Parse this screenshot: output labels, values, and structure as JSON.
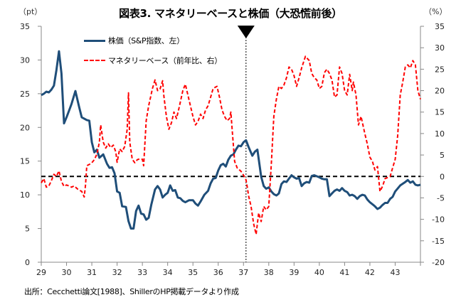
{
  "title": "図表3. マネタリーベースと株価（大恐慌前後）",
  "left_unit": "（pt）",
  "right_unit": "（%）",
  "source_note": "出所：Cecchetti論文[1988]、ShillerのHP掲載データより作成",
  "chart_data": {
    "type": "line",
    "title": "図表3. マネタリーベースと株価（大恐慌前後）",
    "xlabel": "",
    "x_tick_labels": [
      "29",
      "30",
      "31",
      "32",
      "33",
      "34",
      "35",
      "36",
      "37",
      "38",
      "39",
      "40",
      "41",
      "42",
      "43"
    ],
    "xlim": [
      1929,
      1944
    ],
    "y_left": {
      "label": "（pt）",
      "lim": [
        0,
        35
      ],
      "ticks": [
        0,
        5,
        10,
        15,
        20,
        25,
        30,
        35
      ]
    },
    "y_right": {
      "label": "（%）",
      "lim": [
        -20,
        35
      ],
      "ticks": [
        -20,
        -15,
        -10,
        -5,
        0,
        5,
        10,
        15,
        20,
        25,
        30,
        35
      ]
    },
    "reference_line": {
      "axis": "right",
      "value": 0,
      "style": "dashed",
      "color": "#000000"
    },
    "annotation": {
      "type": "marker-triangle-with-vertical-line",
      "x": 1937.1
    },
    "legend": [
      "株価（S&P指数、左）",
      "マネタリーベース（前年比、右）"
    ],
    "legend_position": "top-left",
    "grid": false,
    "series": [
      {
        "name": "株価（S&P指数、左）",
        "axis": "left",
        "color": "#1f4e79",
        "style": "solid",
        "points": [
          [
            1929.0,
            24.8
          ],
          [
            1929.1,
            25.0
          ],
          [
            1929.2,
            25.3
          ],
          [
            1929.3,
            25.2
          ],
          [
            1929.4,
            25.6
          ],
          [
            1929.5,
            26.2
          ],
          [
            1929.6,
            28.5
          ],
          [
            1929.7,
            31.3
          ],
          [
            1929.8,
            28.0
          ],
          [
            1929.9,
            20.6
          ],
          [
            1930.0,
            21.5
          ],
          [
            1930.1,
            22.5
          ],
          [
            1930.2,
            23.5
          ],
          [
            1930.35,
            25.4
          ],
          [
            1930.5,
            23.0
          ],
          [
            1930.6,
            21.5
          ],
          [
            1930.8,
            21.1
          ],
          [
            1930.9,
            21.0
          ],
          [
            1931.0,
            17.8
          ],
          [
            1931.1,
            16.3
          ],
          [
            1931.2,
            16.7
          ],
          [
            1931.3,
            15.5
          ],
          [
            1931.45,
            16.0
          ],
          [
            1931.6,
            14.6
          ],
          [
            1931.7,
            14.0
          ],
          [
            1931.8,
            14.1
          ],
          [
            1931.9,
            13.2
          ],
          [
            1932.0,
            10.5
          ],
          [
            1932.1,
            10.3
          ],
          [
            1932.2,
            8.3
          ],
          [
            1932.35,
            8.2
          ],
          [
            1932.45,
            6.1
          ],
          [
            1932.55,
            5.0
          ],
          [
            1932.65,
            5.0
          ],
          [
            1932.75,
            7.6
          ],
          [
            1932.85,
            8.4
          ],
          [
            1932.95,
            7.2
          ],
          [
            1933.05,
            7.1
          ],
          [
            1933.15,
            6.3
          ],
          [
            1933.25,
            6.6
          ],
          [
            1933.35,
            8.5
          ],
          [
            1933.5,
            10.8
          ],
          [
            1933.6,
            11.3
          ],
          [
            1933.7,
            10.8
          ],
          [
            1933.8,
            9.6
          ],
          [
            1933.9,
            10.0
          ],
          [
            1934.0,
            10.3
          ],
          [
            1934.1,
            11.4
          ],
          [
            1934.2,
            10.6
          ],
          [
            1934.3,
            10.7
          ],
          [
            1934.4,
            9.6
          ],
          [
            1934.5,
            9.5
          ],
          [
            1934.6,
            9.1
          ],
          [
            1934.7,
            8.9
          ],
          [
            1934.85,
            9.2
          ],
          [
            1935.0,
            9.2
          ],
          [
            1935.1,
            8.7
          ],
          [
            1935.2,
            8.4
          ],
          [
            1935.3,
            9.0
          ],
          [
            1935.45,
            10.0
          ],
          [
            1935.6,
            10.6
          ],
          [
            1935.7,
            11.7
          ],
          [
            1935.8,
            12.4
          ],
          [
            1935.9,
            12.5
          ],
          [
            1936.0,
            13.6
          ],
          [
            1936.1,
            14.4
          ],
          [
            1936.2,
            14.6
          ],
          [
            1936.3,
            14.2
          ],
          [
            1936.4,
            15.2
          ],
          [
            1936.5,
            15.8
          ],
          [
            1936.6,
            16.0
          ],
          [
            1936.7,
            16.7
          ],
          [
            1936.8,
            17.3
          ],
          [
            1936.9,
            17.2
          ],
          [
            1937.0,
            17.8
          ],
          [
            1937.1,
            18.1
          ],
          [
            1937.2,
            17.1
          ],
          [
            1937.35,
            15.8
          ],
          [
            1937.45,
            16.4
          ],
          [
            1937.55,
            16.7
          ],
          [
            1937.7,
            12.7
          ],
          [
            1937.8,
            11.3
          ],
          [
            1937.9,
            10.9
          ],
          [
            1938.0,
            11.1
          ],
          [
            1938.1,
            10.5
          ],
          [
            1938.2,
            10.1
          ],
          [
            1938.3,
            9.9
          ],
          [
            1938.4,
            10.2
          ],
          [
            1938.5,
            11.6
          ],
          [
            1938.6,
            12.0
          ],
          [
            1938.7,
            11.9
          ],
          [
            1938.8,
            12.4
          ],
          [
            1938.9,
            12.9
          ],
          [
            1939.0,
            12.6
          ],
          [
            1939.1,
            12.4
          ],
          [
            1939.2,
            12.5
          ],
          [
            1939.3,
            11.3
          ],
          [
            1939.4,
            11.7
          ],
          [
            1939.5,
            11.9
          ],
          [
            1939.6,
            11.8
          ],
          [
            1939.7,
            12.8
          ],
          [
            1939.8,
            12.9
          ],
          [
            1940.0,
            12.6
          ],
          [
            1940.1,
            12.4
          ],
          [
            1940.2,
            12.3
          ],
          [
            1940.3,
            12.3
          ],
          [
            1940.4,
            9.8
          ],
          [
            1940.5,
            10.2
          ],
          [
            1940.6,
            10.6
          ],
          [
            1940.7,
            10.8
          ],
          [
            1940.8,
            10.6
          ],
          [
            1940.9,
            11.0
          ],
          [
            1941.0,
            10.6
          ],
          [
            1941.1,
            10.4
          ],
          [
            1941.2,
            9.9
          ],
          [
            1941.3,
            10.0
          ],
          [
            1941.4,
            9.8
          ],
          [
            1941.5,
            9.4
          ],
          [
            1941.6,
            9.8
          ],
          [
            1941.7,
            10.0
          ],
          [
            1941.8,
            9.9
          ],
          [
            1941.9,
            9.3
          ],
          [
            1942.0,
            8.9
          ],
          [
            1942.1,
            8.6
          ],
          [
            1942.2,
            8.3
          ],
          [
            1942.3,
            7.9
          ],
          [
            1942.4,
            8.1
          ],
          [
            1942.5,
            8.5
          ],
          [
            1942.6,
            8.8
          ],
          [
            1942.7,
            8.8
          ],
          [
            1942.8,
            9.4
          ],
          [
            1942.9,
            9.7
          ],
          [
            1943.0,
            10.5
          ],
          [
            1943.2,
            11.4
          ],
          [
            1943.4,
            11.9
          ],
          [
            1943.5,
            12.2
          ],
          [
            1943.6,
            11.8
          ],
          [
            1943.7,
            12.0
          ],
          [
            1943.8,
            11.5
          ],
          [
            1943.9,
            11.4
          ],
          [
            1944.0,
            11.5
          ]
        ]
      },
      {
        "name": "マネタリーベース（前年比、右）",
        "axis": "right",
        "color": "#ff0000",
        "style": "dashed",
        "points": [
          [
            1929.0,
            -1.5
          ],
          [
            1929.1,
            -0.5
          ],
          [
            1929.2,
            -2.5
          ],
          [
            1929.3,
            -2.2
          ],
          [
            1929.4,
            -1.0
          ],
          [
            1929.5,
            0.5
          ],
          [
            1929.6,
            0.0
          ],
          [
            1929.7,
            1.3
          ],
          [
            1929.8,
            -1.2
          ],
          [
            1929.9,
            -2.3
          ],
          [
            1930.0,
            -2.0
          ],
          [
            1930.1,
            -2.2
          ],
          [
            1930.2,
            -2.5
          ],
          [
            1930.3,
            -2.2
          ],
          [
            1930.45,
            -3.0
          ],
          [
            1930.6,
            -3.5
          ],
          [
            1930.7,
            -4.8
          ],
          [
            1930.75,
            -2.0
          ],
          [
            1930.8,
            2.5
          ],
          [
            1930.9,
            2.8
          ],
          [
            1931.0,
            3.2
          ],
          [
            1931.1,
            3.9
          ],
          [
            1931.2,
            5.2
          ],
          [
            1931.3,
            8.0
          ],
          [
            1931.35,
            12.0
          ],
          [
            1931.45,
            8.0
          ],
          [
            1931.55,
            6.6
          ],
          [
            1931.65,
            7.6
          ],
          [
            1931.75,
            6.7
          ],
          [
            1931.85,
            7.3
          ],
          [
            1931.95,
            5.7
          ],
          [
            1932.0,
            3.3
          ],
          [
            1932.1,
            6.4
          ],
          [
            1932.2,
            5.8
          ],
          [
            1932.3,
            7.0
          ],
          [
            1932.4,
            11.0
          ],
          [
            1932.45,
            19.5
          ],
          [
            1932.5,
            8.0
          ],
          [
            1932.6,
            4.0
          ],
          [
            1932.7,
            3.2
          ],
          [
            1932.8,
            3.9
          ],
          [
            1932.9,
            4.1
          ],
          [
            1933.0,
            4.0
          ],
          [
            1933.05,
            2.5
          ],
          [
            1933.15,
            13.0
          ],
          [
            1933.25,
            16.5
          ],
          [
            1933.4,
            20.5
          ],
          [
            1933.5,
            22.5
          ],
          [
            1933.6,
            20.0
          ],
          [
            1933.7,
            20.4
          ],
          [
            1933.8,
            22.3
          ],
          [
            1933.85,
            18.8
          ],
          [
            1933.95,
            14.0
          ],
          [
            1934.05,
            11.0
          ],
          [
            1934.15,
            12.5
          ],
          [
            1934.25,
            15.0
          ],
          [
            1934.35,
            13.5
          ],
          [
            1934.45,
            16.0
          ],
          [
            1934.6,
            20.0
          ],
          [
            1934.7,
            21.5
          ],
          [
            1934.8,
            19.0
          ],
          [
            1934.9,
            16.5
          ],
          [
            1935.0,
            14.0
          ],
          [
            1935.1,
            12.0
          ],
          [
            1935.2,
            12.8
          ],
          [
            1935.3,
            14.5
          ],
          [
            1935.4,
            13.5
          ],
          [
            1935.5,
            15.5
          ],
          [
            1935.6,
            16.5
          ],
          [
            1935.7,
            18.5
          ],
          [
            1935.8,
            20.5
          ],
          [
            1935.95,
            21.0
          ],
          [
            1936.05,
            18.5
          ],
          [
            1936.15,
            15.5
          ],
          [
            1936.25,
            14.0
          ],
          [
            1936.35,
            13.0
          ],
          [
            1936.45,
            13.5
          ],
          [
            1936.5,
            15.0
          ],
          [
            1936.55,
            11.0
          ],
          [
            1936.65,
            3.5
          ],
          [
            1936.75,
            2.0
          ],
          [
            1936.9,
            1.2
          ],
          [
            1937.0,
            0.3
          ],
          [
            1937.1,
            -0.8
          ],
          [
            1937.15,
            -2.5
          ],
          [
            1937.2,
            -4.5
          ],
          [
            1937.3,
            -7.0
          ],
          [
            1937.4,
            -11.0
          ],
          [
            1937.5,
            -13.5
          ],
          [
            1937.6,
            -8.5
          ],
          [
            1937.7,
            -10.5
          ],
          [
            1937.8,
            -7.0
          ],
          [
            1937.9,
            -7.8
          ],
          [
            1938.0,
            -7.0
          ],
          [
            1938.1,
            3.0
          ],
          [
            1938.2,
            14.0
          ],
          [
            1938.3,
            18.0
          ],
          [
            1938.4,
            21.0
          ],
          [
            1938.5,
            20.5
          ],
          [
            1938.6,
            21.3
          ],
          [
            1938.7,
            23.0
          ],
          [
            1938.8,
            25.5
          ],
          [
            1938.9,
            25.0
          ],
          [
            1939.0,
            23.5
          ],
          [
            1939.1,
            21.0
          ],
          [
            1939.2,
            23.0
          ],
          [
            1939.3,
            25.3
          ],
          [
            1939.45,
            28.0
          ],
          [
            1939.6,
            27.0
          ],
          [
            1939.7,
            24.0
          ],
          [
            1939.8,
            23.0
          ],
          [
            1939.9,
            22.5
          ],
          [
            1940.0,
            20.5
          ],
          [
            1940.1,
            21.0
          ],
          [
            1940.2,
            24.2
          ],
          [
            1940.3,
            25.0
          ],
          [
            1940.4,
            24.0
          ],
          [
            1940.5,
            22.5
          ],
          [
            1940.6,
            18.5
          ],
          [
            1940.7,
            19.0
          ],
          [
            1940.8,
            25.5
          ],
          [
            1940.9,
            24.0
          ],
          [
            1941.0,
            20.0
          ],
          [
            1941.1,
            19.0
          ],
          [
            1941.2,
            23.8
          ],
          [
            1941.3,
            20.0
          ],
          [
            1941.35,
            22.0
          ],
          [
            1941.45,
            19.0
          ],
          [
            1941.55,
            12.0
          ],
          [
            1941.65,
            14.0
          ],
          [
            1941.8,
            10.0
          ],
          [
            1941.9,
            7.5
          ],
          [
            1942.0,
            4.5
          ],
          [
            1942.1,
            3.5
          ],
          [
            1942.2,
            1.5
          ],
          [
            1942.3,
            2.3
          ],
          [
            1942.4,
            -3.5
          ],
          [
            1942.5,
            -2.3
          ],
          [
            1942.6,
            -0.5
          ],
          [
            1942.8,
            0.0
          ],
          [
            1942.9,
            2.0
          ],
          [
            1943.0,
            4.0
          ],
          [
            1943.1,
            9.5
          ],
          [
            1943.2,
            19.0
          ],
          [
            1943.3,
            22.0
          ],
          [
            1943.4,
            25.5
          ],
          [
            1943.5,
            26.0
          ],
          [
            1943.6,
            25.3
          ],
          [
            1943.7,
            27.0
          ],
          [
            1943.8,
            26.0
          ],
          [
            1943.9,
            20.0
          ],
          [
            1944.0,
            18.0
          ]
        ]
      }
    ]
  }
}
